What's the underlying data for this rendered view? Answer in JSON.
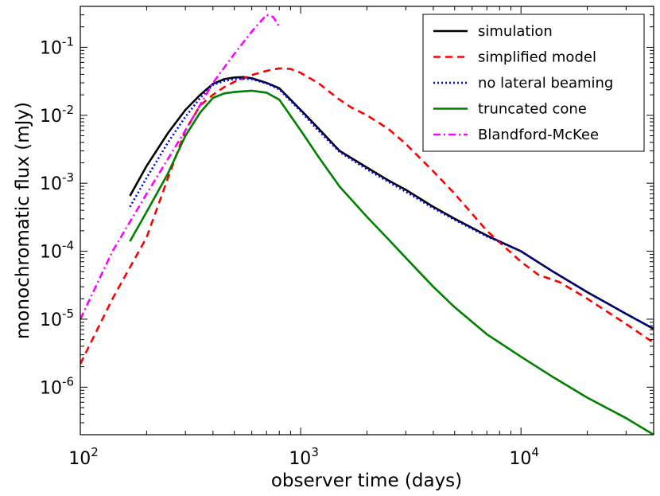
{
  "chart_data": {
    "type": "line",
    "xlabel": "observer time (days)",
    "ylabel": "monochromatic flux (mJy)",
    "xscale": "log",
    "yscale": "log",
    "xlim": [
      100,
      40000
    ],
    "ylim": [
      2e-07,
      0.4
    ],
    "x_ticks": [
      {
        "value": 100,
        "label": "10",
        "exp": "2"
      },
      {
        "value": 1000,
        "label": "10",
        "exp": "3"
      },
      {
        "value": 10000,
        "label": "10",
        "exp": "4"
      }
    ],
    "y_ticks": [
      {
        "value": 1e-06,
        "label": "10",
        "exp": "-6"
      },
      {
        "value": 1e-05,
        "label": "10",
        "exp": "-5"
      },
      {
        "value": 0.0001,
        "label": "10",
        "exp": "-4"
      },
      {
        "value": 0.001,
        "label": "10",
        "exp": "-3"
      },
      {
        "value": 0.01,
        "label": "10",
        "exp": "-2"
      },
      {
        "value": 0.1,
        "label": "10",
        "exp": "-1"
      }
    ],
    "legend_position": "top-right",
    "series": [
      {
        "name": "simulation",
        "color": "#000000",
        "dash": "solid",
        "x": [
          168,
          200,
          250,
          300,
          350,
          400,
          450,
          500,
          550,
          600,
          700,
          800,
          1000,
          1200,
          1500,
          2000,
          2500,
          3000,
          4000,
          5000,
          7000,
          10000,
          14000,
          20000,
          30000,
          40000
        ],
        "y": [
          0.00065,
          0.0018,
          0.0055,
          0.012,
          0.02,
          0.029,
          0.034,
          0.036,
          0.0365,
          0.035,
          0.03,
          0.025,
          0.012,
          0.0065,
          0.003,
          0.0017,
          0.0011,
          0.0008,
          0.00045,
          0.0003,
          0.00017,
          0.0001,
          5e-05,
          2.5e-05,
          1.2e-05,
          7.2e-06
        ]
      },
      {
        "name": "simplified model",
        "color": "#ff0000",
        "dash": "dashed",
        "x": [
          100,
          140,
          200,
          250,
          300,
          350,
          400,
          450,
          500,
          600,
          700,
          800,
          900,
          1000,
          1200,
          1500,
          1700,
          2000,
          2500,
          3000,
          4000,
          5000,
          7000,
          10000,
          12000,
          15000,
          20000,
          30000,
          40000
        ],
        "y": [
          2.2e-06,
          2e-05,
          0.00016,
          0.0012,
          0.006,
          0.014,
          0.02,
          0.026,
          0.031,
          0.039,
          0.045,
          0.049,
          0.048,
          0.042,
          0.03,
          0.017,
          0.013,
          0.01,
          0.0063,
          0.0038,
          0.0015,
          0.0007,
          0.0002,
          7e-05,
          4.5e-05,
          3.5e-05,
          2e-05,
          8.5e-06,
          4.5e-06
        ]
      },
      {
        "name": "no lateral beaming",
        "color": "#0000ff",
        "dash": "dotted",
        "x": [
          168,
          200,
          250,
          300,
          350,
          400,
          450,
          500,
          550,
          600,
          700,
          800,
          1000,
          1200,
          1500,
          2000,
          2500,
          3000,
          4000,
          5000,
          7000,
          10000,
          14000,
          20000,
          30000,
          40000
        ],
        "y": [
          0.00045,
          0.0012,
          0.004,
          0.0095,
          0.018,
          0.028,
          0.032,
          0.034,
          0.0345,
          0.034,
          0.0295,
          0.024,
          0.0115,
          0.006,
          0.0029,
          0.0016,
          0.00105,
          0.00075,
          0.00043,
          0.00029,
          0.000165,
          0.0001,
          5e-05,
          2.5e-05,
          1.2e-05,
          7.2e-06
        ]
      },
      {
        "name": "truncated cone",
        "color": "#008000",
        "dash": "solid",
        "x": [
          168,
          200,
          250,
          300,
          350,
          400,
          450,
          500,
          600,
          700,
          800,
          1000,
          1200,
          1500,
          2000,
          2500,
          3000,
          4000,
          5000,
          7000,
          10000,
          14000,
          20000,
          30000,
          40000
        ],
        "y": [
          0.00014,
          0.00038,
          0.0014,
          0.005,
          0.011,
          0.018,
          0.021,
          0.022,
          0.023,
          0.0215,
          0.017,
          0.006,
          0.0025,
          0.0009,
          0.00032,
          0.00015,
          8e-05,
          3e-05,
          1.5e-05,
          6e-06,
          2.8e-06,
          1.4e-06,
          7e-07,
          3.5e-07,
          2e-07
        ]
      },
      {
        "name": "Blandford-McKee",
        "color": "#ff00ff",
        "dash": "dashdot",
        "x": [
          100,
          140,
          200,
          300,
          400,
          500,
          600,
          700,
          750,
          800
        ],
        "y": [
          1e-05,
          0.0001,
          0.0007,
          0.006,
          0.03,
          0.08,
          0.17,
          0.3,
          0.28,
          0.2
        ]
      }
    ]
  }
}
